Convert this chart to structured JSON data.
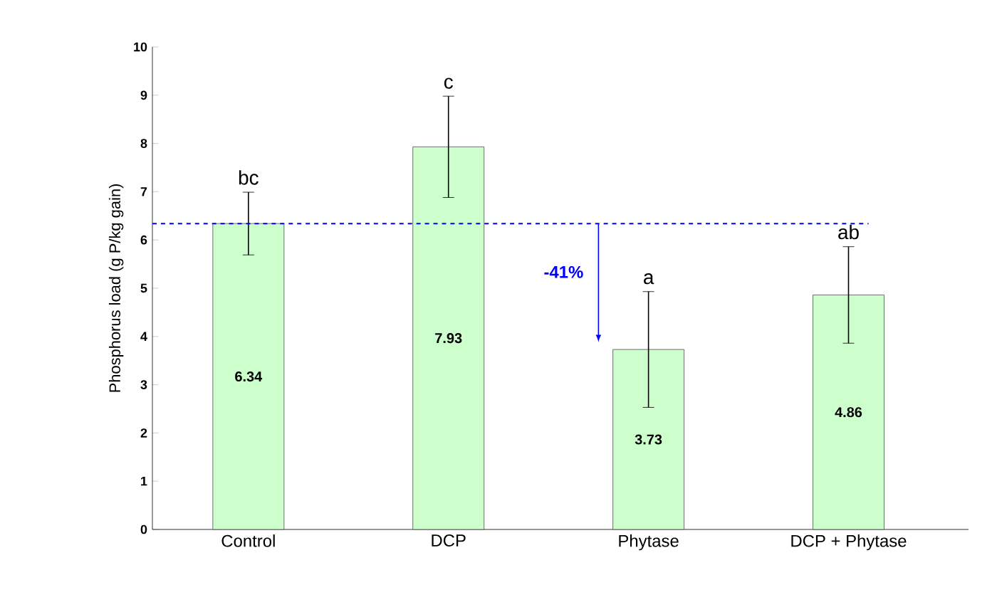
{
  "chart_data": {
    "type": "bar",
    "ylabel": "Phosphorus load (g P/kg gain)",
    "categories": [
      "Control",
      "DCP",
      "Phytase",
      "DCP + Phytase"
    ],
    "values": [
      6.34,
      7.93,
      3.73,
      4.86
    ],
    "errors": [
      0.65,
      1.05,
      1.2,
      1.0
    ],
    "color": "#ccffcc",
    "data_labels": true,
    "ylim": [
      0,
      10
    ],
    "yticks": [
      0,
      1,
      2,
      3,
      4,
      5,
      6,
      7,
      8,
      9,
      10
    ],
    "grid": false,
    "ref_lines": [
      {
        "axis": "y",
        "value": 6.34,
        "color": "#0000ff",
        "line_style": "dashed"
      }
    ],
    "annotations": [
      {
        "text": "bc",
        "x": "Control",
        "y": 6.99
      },
      {
        "text": "c",
        "x": "DCP",
        "y": 8.98
      },
      {
        "text": "a",
        "x": "Phytase",
        "y": 4.93
      },
      {
        "text": "ab",
        "x": "DCP + Phytase",
        "y": 5.86
      },
      "-41%"
    ]
  }
}
